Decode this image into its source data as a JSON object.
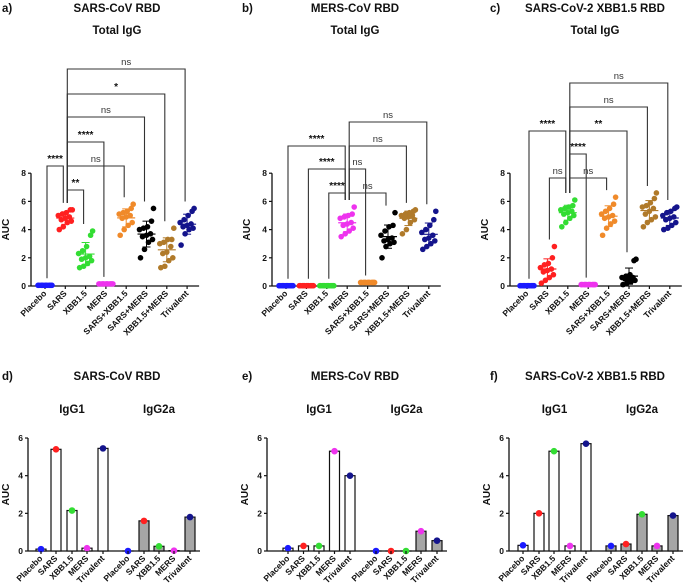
{
  "colors": {
    "Placebo": "#1a1aff",
    "SARS": "#ff2020",
    "XBB1.5": "#33dd33",
    "MERS": "#ee33ee",
    "SARS+XBB1.5": "#f08a2a",
    "SARS+MERS": "#000000",
    "XBB1.5+MERS": "#b07a2a",
    "Trivalent": "#14148c",
    "igg2a_bar_fill": "#a6a6a6"
  },
  "chart_data": [
    {
      "panel": "a)",
      "type": "scatter",
      "title": "SARS-CoV RBD",
      "subtitle": "Total IgG",
      "ylabel": "AUC",
      "ylim": [
        0,
        8
      ],
      "yticks": [
        "0",
        "2",
        "4",
        "6",
        "8"
      ],
      "categories": [
        "Placebo",
        "SARS",
        "XBB1.5",
        "MERS",
        "SARS+XBB1.5",
        "SARS+MERS",
        "XBB1.5+MERS",
        "Trivalent"
      ],
      "values": [
        [
          0.05,
          0.05,
          0.05,
          0.05,
          0.05,
          0.05,
          0.05,
          0.05,
          0.05,
          0.05,
          0.05,
          0.05
        ],
        [
          4.0,
          4.2,
          4.5,
          4.6,
          4.7,
          4.8,
          4.9,
          5.0,
          5.1,
          5.2,
          5.4,
          5.4
        ],
        [
          1.3,
          1.4,
          1.6,
          1.8,
          1.9,
          2.0,
          2.1,
          2.3,
          2.5,
          2.8,
          3.6,
          3.9
        ],
        [
          0.15,
          0.15,
          0.15,
          0.15,
          0.15,
          0.15,
          0.15,
          0.15,
          0.15,
          0.15,
          0.15,
          0.15
        ],
        [
          3.6,
          4.0,
          4.3,
          4.5,
          4.8,
          4.9,
          5.0,
          5.1,
          5.2,
          5.3,
          5.5,
          5.8
        ],
        [
          2.0,
          2.6,
          3.1,
          3.3,
          3.5,
          3.6,
          3.7,
          4.0,
          4.1,
          4.2,
          4.6,
          5.5
        ],
        [
          1.3,
          1.4,
          1.8,
          2.0,
          2.3,
          2.4,
          2.8,
          3.0,
          3.1,
          3.3,
          3.3,
          4.1
        ],
        [
          2.9,
          3.7,
          4.0,
          4.1,
          4.2,
          4.3,
          4.4,
          4.5,
          4.7,
          5.0,
          5.3,
          5.5
        ]
      ],
      "comparisons": [
        {
          "a": "Placebo",
          "b": "SARS",
          "label": "****"
        },
        {
          "a": "SARS",
          "b": "XBB1.5",
          "label": "**"
        },
        {
          "a": "SARS",
          "b": "MERS",
          "label": "****"
        },
        {
          "a": "SARS",
          "b": "SARS+XBB1.5",
          "label": "ns"
        },
        {
          "a": "SARS",
          "b": "SARS+MERS",
          "label": "ns"
        },
        {
          "a": "SARS",
          "b": "XBB1.5+MERS",
          "label": "*"
        },
        {
          "a": "SARS",
          "b": "Trivalent",
          "label": "ns"
        }
      ]
    },
    {
      "panel": "b)",
      "type": "scatter",
      "title": "MERS-CoV RBD",
      "subtitle": "Total IgG",
      "ylabel": "AUC",
      "ylim": [
        0,
        8
      ],
      "yticks": [
        "0",
        "2",
        "4",
        "6",
        "8"
      ],
      "categories": [
        "Placebo",
        "SARS",
        "XBB1.5",
        "MERS",
        "SARS+XBB1.5",
        "SARS+MERS",
        "XBB1.5+MERS",
        "Trivalent"
      ],
      "values": [
        [
          0.02,
          0.02,
          0.02,
          0.02,
          0.02,
          0.02,
          0.02,
          0.02,
          0.02,
          0.02,
          0.02,
          0.02
        ],
        [
          0.02,
          0.02,
          0.02,
          0.02,
          0.02,
          0.02,
          0.02,
          0.02,
          0.02,
          0.02,
          0.02,
          0.02
        ],
        [
          0.02,
          0.02,
          0.02,
          0.02,
          0.02,
          0.02,
          0.02,
          0.02,
          0.02,
          0.02,
          0.02,
          0.02
        ],
        [
          3.5,
          3.7,
          3.9,
          4.1,
          4.3,
          4.4,
          4.5,
          4.8,
          4.9,
          5.0,
          5.1,
          5.6
        ],
        [
          0.25,
          0.25,
          0.25,
          0.25,
          0.25,
          0.25,
          0.25,
          0.25,
          0.25,
          0.25,
          0.25,
          0.25
        ],
        [
          2.0,
          2.8,
          3.0,
          3.1,
          3.2,
          3.3,
          3.4,
          3.6,
          3.9,
          4.2,
          4.3,
          5.2
        ],
        [
          3.7,
          4.0,
          4.5,
          4.7,
          4.8,
          4.9,
          5.0,
          5.0,
          5.1,
          5.2,
          5.3,
          5.4
        ],
        [
          2.6,
          2.8,
          3.0,
          3.2,
          3.3,
          3.4,
          3.6,
          3.8,
          4.0,
          4.3,
          4.7,
          5.3
        ]
      ],
      "comparisons": [
        {
          "a": "Placebo",
          "b": "MERS",
          "label": "****"
        },
        {
          "a": "SARS",
          "b": "MERS",
          "label": "****"
        },
        {
          "a": "XBB1.5",
          "b": "MERS",
          "label": "****"
        },
        {
          "a": "MERS",
          "b": "SARS+XBB1.5",
          "label": "ns"
        },
        {
          "a": "MERS",
          "b": "SARS+MERS",
          "label": "ns"
        },
        {
          "a": "MERS",
          "b": "XBB1.5+MERS",
          "label": "ns"
        },
        {
          "a": "MERS",
          "b": "Trivalent",
          "label": "ns"
        }
      ]
    },
    {
      "panel": "c)",
      "type": "scatter",
      "title": "SARS-CoV-2 XBB1.5 RBD",
      "subtitle": "Total IgG",
      "ylabel": "AUC",
      "ylim": [
        0,
        8
      ],
      "yticks": [
        "0",
        "2",
        "4",
        "6",
        "8"
      ],
      "categories": [
        "Placebo",
        "SARS",
        "XBB1.5",
        "MERS",
        "SARS+XBB1.5",
        "SARS+MERS",
        "XBB1.5+MERS",
        "Trivalent"
      ],
      "values": [
        [
          0.02,
          0.02,
          0.02,
          0.02,
          0.02,
          0.02,
          0.02,
          0.02,
          0.02,
          0.02,
          0.02,
          0.02
        ],
        [
          0.2,
          0.4,
          0.6,
          0.8,
          1.0,
          1.1,
          1.2,
          1.3,
          1.5,
          1.6,
          2.0,
          2.8
        ],
        [
          4.2,
          4.5,
          4.8,
          5.0,
          5.1,
          5.2,
          5.3,
          5.4,
          5.5,
          5.6,
          5.7,
          6.1
        ],
        [
          0.1,
          0.1,
          0.1,
          0.1,
          0.1,
          0.1,
          0.1,
          0.1,
          0.1,
          0.1,
          0.1,
          0.1
        ],
        [
          3.6,
          4.1,
          4.4,
          4.6,
          4.8,
          4.9,
          5.0,
          5.1,
          5.3,
          5.5,
          5.8,
          6.3
        ],
        [
          0.1,
          0.2,
          0.3,
          0.4,
          0.5,
          0.5,
          0.6,
          0.6,
          0.7,
          0.8,
          1.8,
          1.9
        ],
        [
          4.2,
          4.5,
          4.7,
          4.9,
          5.1,
          5.3,
          5.5,
          5.6,
          5.7,
          5.9,
          6.2,
          6.6
        ],
        [
          4.0,
          4.1,
          4.3,
          4.5,
          4.7,
          4.8,
          4.9,
          5.0,
          5.2,
          5.3,
          5.5,
          5.6
        ]
      ],
      "comparisons": [
        {
          "a": "SARS",
          "b": "XBB1.5",
          "label": "ns"
        },
        {
          "a": "Placebo",
          "b": "XBB1.5",
          "label": "****"
        },
        {
          "a": "XBB1.5",
          "b": "MERS",
          "label": "****"
        },
        {
          "a": "XBB1.5",
          "b": "SARS+XBB1.5",
          "label": "ns"
        },
        {
          "a": "XBB1.5",
          "b": "SARS+MERS",
          "label": "**"
        },
        {
          "a": "XBB1.5",
          "b": "XBB1.5+MERS",
          "label": "ns"
        },
        {
          "a": "XBB1.5",
          "b": "Trivalent",
          "label": "ns"
        }
      ]
    },
    {
      "panel": "d)",
      "type": "bar",
      "title": "SARS-CoV RBD",
      "ylabel": "AUC",
      "ylim": [
        0,
        6
      ],
      "yticks": [
        "0",
        "2",
        "4",
        "6"
      ],
      "categories": [
        "Placebo",
        "SARS",
        "XBB1.5",
        "MERS",
        "Trivalent"
      ],
      "series": [
        {
          "name": "IgG1",
          "values": [
            0.1,
            5.4,
            2.15,
            0.15,
            5.45
          ]
        },
        {
          "name": "IgG2a",
          "values": [
            0.0,
            1.6,
            0.25,
            0.02,
            1.8
          ]
        }
      ]
    },
    {
      "panel": "e)",
      "type": "bar",
      "title": "MERS-CoV RBD",
      "ylabel": "AUC",
      "ylim": [
        0,
        6
      ],
      "yticks": [
        "0",
        "2",
        "4",
        "6"
      ],
      "categories": [
        "Placebo",
        "SARS",
        "XBB1.5",
        "MERS",
        "Trivalent"
      ],
      "series": [
        {
          "name": "IgG1",
          "values": [
            0.15,
            0.27,
            0.27,
            5.3,
            4.0
          ]
        },
        {
          "name": "IgG2a",
          "values": [
            0.0,
            0.0,
            0.0,
            1.05,
            0.55
          ]
        }
      ]
    },
    {
      "panel": "f)",
      "type": "bar",
      "title": "SARS-CoV-2 XBB1.5 RBD",
      "ylabel": "AUC",
      "ylim": [
        0,
        6
      ],
      "yticks": [
        "0",
        "2",
        "4",
        "6"
      ],
      "categories": [
        "Placebo",
        "SARS",
        "XBB1.5",
        "MERS",
        "Trivalent"
      ],
      "series": [
        {
          "name": "IgG1",
          "values": [
            0.3,
            2.0,
            5.3,
            0.27,
            5.7
          ]
        },
        {
          "name": "IgG2a",
          "values": [
            0.27,
            0.37,
            1.95,
            0.27,
            1.88
          ]
        }
      ]
    }
  ]
}
